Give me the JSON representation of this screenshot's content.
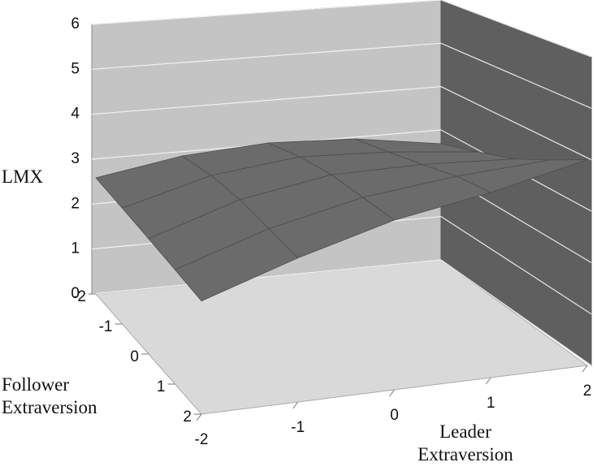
{
  "chart_data": {
    "type": "surface",
    "zlabel": "LMX",
    "ylabel": "Follower Extraversion",
    "xlabel": "Leader Extraversion",
    "x": [
      -2,
      -1,
      0,
      1,
      2
    ],
    "y": [
      -2,
      -1,
      0,
      1,
      2
    ],
    "z": [
      [
        2.6,
        2.9,
        3.0,
        2.9,
        2.6
      ],
      [
        2.5,
        3.0,
        3.2,
        3.1,
        2.9
      ],
      [
        2.4,
        3.0,
        3.3,
        3.3,
        3.2
      ],
      [
        2.3,
        2.9,
        3.3,
        3.5,
        3.6
      ],
      [
        2.2,
        2.8,
        3.3,
        3.6,
        4.0
      ]
    ],
    "xlim": [
      -2,
      2
    ],
    "ylim": [
      -2,
      2
    ],
    "zlim": [
      0,
      6
    ],
    "xticks": [
      -2,
      -1,
      0,
      1,
      2
    ],
    "yticks": [
      -2,
      -1,
      0,
      1,
      2
    ],
    "zticks": [
      0,
      1,
      2,
      3,
      4,
      5,
      6
    ],
    "color": "#6b6b6b",
    "grid": true
  }
}
